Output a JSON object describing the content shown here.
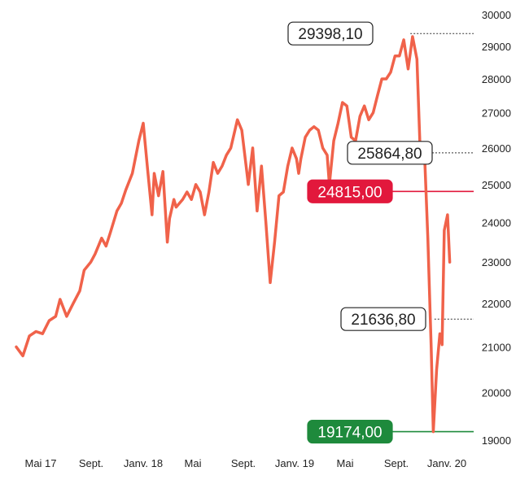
{
  "chart_data": {
    "type": "line",
    "title": "",
    "xlabel": "",
    "ylabel": "",
    "x_ticks": [
      "Mai 17",
      "Sept.",
      "Janv. 18",
      "Mai",
      "Sept.",
      "Janv. 19",
      "Mai",
      "Sept.",
      "Janv. 20"
    ],
    "y_ticks": [
      19000,
      20000,
      21000,
      22000,
      23000,
      24000,
      25000,
      26000,
      27000,
      28000,
      29000,
      30000
    ],
    "y_tick_labels": [
      "19000",
      "20000",
      "21000",
      "22000",
      "23000",
      "24000",
      "25000",
      "26000",
      "27000",
      "28000",
      "29000",
      "30000"
    ],
    "ylim": [
      19000,
      30000
    ],
    "y_scale": "log",
    "grid": false,
    "line_color": "#f0624a",
    "series": [
      {
        "points": [
          [
            0.0,
            21000
          ],
          [
            0.3,
            20800
          ],
          [
            0.6,
            21250
          ],
          [
            0.9,
            21350
          ],
          [
            1.2,
            21300
          ],
          [
            1.5,
            21600
          ],
          [
            1.8,
            21700
          ],
          [
            2.0,
            22100
          ],
          [
            2.3,
            21700
          ],
          [
            2.6,
            22000
          ],
          [
            2.9,
            22300
          ],
          [
            3.1,
            22800
          ],
          [
            3.4,
            23000
          ],
          [
            3.6,
            23200
          ],
          [
            3.9,
            23600
          ],
          [
            4.1,
            23400
          ],
          [
            4.3,
            23750
          ],
          [
            4.6,
            24300
          ],
          [
            4.8,
            24500
          ],
          [
            5.0,
            24850
          ],
          [
            5.3,
            25300
          ],
          [
            5.6,
            26200
          ],
          [
            5.8,
            26700
          ],
          [
            6.0,
            25400
          ],
          [
            6.2,
            24200
          ],
          [
            6.3,
            25300
          ],
          [
            6.5,
            24700
          ],
          [
            6.7,
            25350
          ],
          [
            6.9,
            23500
          ],
          [
            7.0,
            24100
          ],
          [
            7.2,
            24600
          ],
          [
            7.3,
            24400
          ],
          [
            7.6,
            24600
          ],
          [
            7.8,
            24800
          ],
          [
            8.0,
            24600
          ],
          [
            8.2,
            25000
          ],
          [
            8.4,
            24800
          ],
          [
            8.6,
            24200
          ],
          [
            8.8,
            24800
          ],
          [
            9.0,
            25600
          ],
          [
            9.2,
            25300
          ],
          [
            9.4,
            25500
          ],
          [
            9.6,
            25800
          ],
          [
            9.8,
            26000
          ],
          [
            10.1,
            26800
          ],
          [
            10.3,
            26500
          ],
          [
            10.5,
            25500
          ],
          [
            10.6,
            25000
          ],
          [
            10.8,
            26000
          ],
          [
            11.0,
            24300
          ],
          [
            11.2,
            25500
          ],
          [
            11.4,
            24000
          ],
          [
            11.6,
            22500
          ],
          [
            11.8,
            23500
          ],
          [
            12.0,
            24700
          ],
          [
            12.2,
            24800
          ],
          [
            12.4,
            25500
          ],
          [
            12.6,
            26000
          ],
          [
            12.8,
            25700
          ],
          [
            12.9,
            25300
          ],
          [
            13.0,
            25700
          ],
          [
            13.2,
            26300
          ],
          [
            13.4,
            26500
          ],
          [
            13.6,
            26600
          ],
          [
            13.8,
            26500
          ],
          [
            14.0,
            26000
          ],
          [
            14.2,
            25800
          ],
          [
            14.3,
            25000
          ],
          [
            14.5,
            26200
          ],
          [
            14.7,
            26700
          ],
          [
            14.9,
            27300
          ],
          [
            15.1,
            27200
          ],
          [
            15.3,
            26300
          ],
          [
            15.5,
            26200
          ],
          [
            15.7,
            26900
          ],
          [
            15.9,
            27200
          ],
          [
            16.1,
            26800
          ],
          [
            16.3,
            27000
          ],
          [
            16.5,
            27500
          ],
          [
            16.7,
            28000
          ],
          [
            16.9,
            28000
          ],
          [
            17.1,
            28200
          ],
          [
            17.3,
            28700
          ],
          [
            17.5,
            28700
          ],
          [
            17.7,
            29200
          ],
          [
            17.9,
            28300
          ],
          [
            18.1,
            29300
          ],
          [
            18.3,
            28600
          ],
          [
            18.45,
            25900
          ],
          [
            18.55,
            25600
          ],
          [
            18.65,
            25800
          ],
          [
            18.8,
            23600
          ],
          [
            18.95,
            21000
          ],
          [
            19.05,
            19174
          ],
          [
            19.2,
            20500
          ],
          [
            19.35,
            21300
          ],
          [
            19.45,
            21050
          ],
          [
            19.55,
            23800
          ],
          [
            19.7,
            24200
          ],
          [
            19.8,
            23000
          ]
        ]
      }
    ],
    "x_range": [
      0,
      20
    ],
    "annotations": [
      {
        "label": "29398,10",
        "value": 29398.1,
        "x": 18.0,
        "style": "outline"
      },
      {
        "label": "25864,80",
        "value": 25864.8,
        "x": 18.55,
        "style": "outline"
      },
      {
        "label": "24815,00",
        "value": 24815.0,
        "x": 14.1,
        "style": "filled",
        "color": "#e2183c"
      },
      {
        "label": "21636,80",
        "value": 21636.8,
        "x": 19.1,
        "style": "outline"
      },
      {
        "label": "19174,00",
        "value": 19174.0,
        "x": 19.05,
        "style": "filled",
        "color": "#1e8a3c"
      }
    ]
  }
}
